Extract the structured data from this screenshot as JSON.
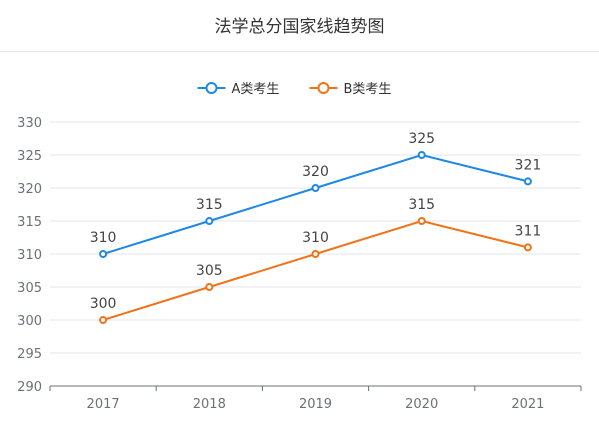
{
  "header": {
    "title": "法学总分国家线趋势图"
  },
  "colors": {
    "series_a": "#1e88e5",
    "series_b": "#f07318",
    "grid": "#e0e6f1",
    "axis": "#6e7079"
  },
  "chart_data": {
    "type": "line",
    "title": "法学总分国家线趋势图",
    "x": [
      "2017",
      "2018",
      "2019",
      "2020",
      "2021"
    ],
    "ylim": [
      290,
      330
    ],
    "yticks": [
      290,
      295,
      300,
      305,
      310,
      315,
      320,
      325,
      330
    ],
    "grid": true,
    "legend": "top-center",
    "series": [
      {
        "name": "A类考生",
        "color": "#1e88e5",
        "values": [
          310,
          315,
          320,
          325,
          321
        ]
      },
      {
        "name": "B类考生",
        "color": "#f07318",
        "values": [
          300,
          305,
          310,
          315,
          311
        ]
      }
    ]
  }
}
